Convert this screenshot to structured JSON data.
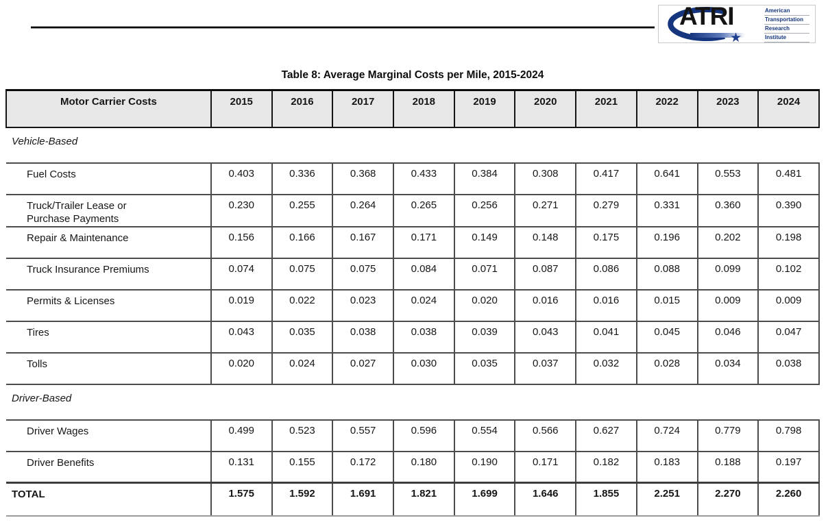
{
  "logo": {
    "acronym": "ATRI",
    "star": "★",
    "org_words": [
      "American",
      "Transportation",
      "Research",
      "Institute"
    ],
    "brand_blue": "#16357f"
  },
  "document": {
    "title": "Table 8: Average Marginal Costs per Mile, 2015-2024"
  },
  "chart_data": {
    "type": "table",
    "title": "Table 8: Average Marginal Costs per Mile, 2015-2024",
    "header": [
      "Motor Carrier Costs",
      "2015",
      "2016",
      "2017",
      "2018",
      "2019",
      "2020",
      "2021",
      "2022",
      "2023",
      "2024"
    ],
    "rows": [
      {
        "type": "section",
        "label": "Vehicle-Based"
      },
      {
        "type": "item",
        "label": "Fuel Costs",
        "values": [
          "0.403",
          "0.336",
          "0.368",
          "0.433",
          "0.384",
          "0.308",
          "0.417",
          "0.641",
          "0.553",
          "0.481"
        ]
      },
      {
        "type": "item",
        "label": "Truck/Trailer Lease or Purchase Payments",
        "values": [
          "0.230",
          "0.255",
          "0.264",
          "0.265",
          "0.256",
          "0.271",
          "0.279",
          "0.331",
          "0.360",
          "0.390"
        ]
      },
      {
        "type": "item",
        "label": "Repair & Maintenance",
        "values": [
          "0.156",
          "0.166",
          "0.167",
          "0.171",
          "0.149",
          "0.148",
          "0.175",
          "0.196",
          "0.202",
          "0.198"
        ]
      },
      {
        "type": "item",
        "label": "Truck Insurance Premiums",
        "values": [
          "0.074",
          "0.075",
          "0.075",
          "0.084",
          "0.071",
          "0.087",
          "0.086",
          "0.088",
          "0.099",
          "0.102"
        ]
      },
      {
        "type": "item",
        "label": "Permits & Licenses",
        "values": [
          "0.019",
          "0.022",
          "0.023",
          "0.024",
          "0.020",
          "0.016",
          "0.016",
          "0.015",
          "0.009",
          "0.009"
        ]
      },
      {
        "type": "item",
        "label": "Tires",
        "values": [
          "0.043",
          "0.035",
          "0.038",
          "0.038",
          "0.039",
          "0.043",
          "0.041",
          "0.045",
          "0.046",
          "0.047"
        ]
      },
      {
        "type": "item",
        "label": "Tolls",
        "values": [
          "0.020",
          "0.024",
          "0.027",
          "0.030",
          "0.035",
          "0.037",
          "0.032",
          "0.028",
          "0.034",
          "0.038"
        ]
      },
      {
        "type": "section",
        "label": "Driver-Based"
      },
      {
        "type": "item",
        "label": "Driver Wages",
        "values": [
          "0.499",
          "0.523",
          "0.557",
          "0.596",
          "0.554",
          "0.566",
          "0.627",
          "0.724",
          "0.779",
          "0.798"
        ]
      },
      {
        "type": "item",
        "label": "Driver Benefits",
        "values": [
          "0.131",
          "0.155",
          "0.172",
          "0.180",
          "0.190",
          "0.171",
          "0.182",
          "0.183",
          "0.188",
          "0.197"
        ]
      },
      {
        "type": "total",
        "label": "TOTAL",
        "values": [
          "1.575",
          "1.592",
          "1.691",
          "1.821",
          "1.699",
          "1.646",
          "1.855",
          "2.251",
          "2.270",
          "2.260"
        ]
      }
    ]
  }
}
